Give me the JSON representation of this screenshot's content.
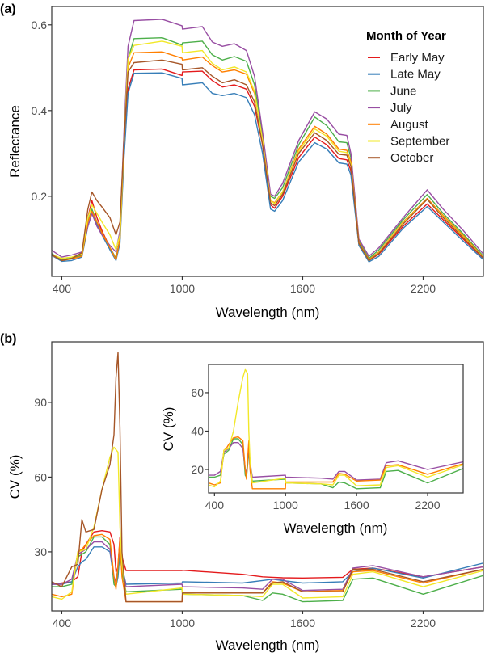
{
  "chart_data": [
    {
      "panel_label": "(a)",
      "type": "line",
      "xlabel": "Wavelength (nm)",
      "ylabel": "Reflectance",
      "xlim": [
        350,
        2500
      ],
      "ylim": [
        0.013,
        0.643
      ],
      "xticks": [
        400,
        1000,
        1600,
        2200
      ],
      "yticks": [
        0.2,
        0.4,
        0.6
      ],
      "ytick_labels": [
        "0.2",
        "0.4",
        "0.6"
      ],
      "grid": false,
      "legend": {
        "title": "Month of Year",
        "position": "top-right inside"
      },
      "x": [
        350,
        400,
        450,
        500,
        530,
        550,
        575,
        600,
        640,
        670,
        690,
        710,
        730,
        760,
        900,
        999,
        1001,
        1100,
        1150,
        1200,
        1260,
        1320,
        1360,
        1400,
        1440,
        1460,
        1500,
        1580,
        1660,
        1720,
        1780,
        1820,
        1840,
        1880,
        1930,
        1980,
        2100,
        2220,
        2300,
        2400,
        2500
      ],
      "series": [
        {
          "name": "Early May",
          "color": "#e41a1c",
          "values": [
            0.065,
            0.052,
            0.055,
            0.062,
            0.15,
            0.19,
            0.15,
            0.12,
            0.08,
            0.055,
            0.1,
            0.3,
            0.45,
            0.495,
            0.497,
            0.482,
            0.49,
            0.492,
            0.47,
            0.455,
            0.46,
            0.45,
            0.41,
            0.32,
            0.18,
            0.172,
            0.2,
            0.29,
            0.338,
            0.32,
            0.288,
            0.285,
            0.26,
            0.09,
            0.05,
            0.065,
            0.13,
            0.182,
            0.145,
            0.1,
            0.055
          ]
        },
        {
          "name": "Late May",
          "color": "#377eb8",
          "values": [
            0.062,
            0.048,
            0.05,
            0.058,
            0.13,
            0.16,
            0.135,
            0.11,
            0.075,
            0.05,
            0.09,
            0.29,
            0.44,
            0.487,
            0.488,
            0.475,
            0.46,
            0.465,
            0.44,
            0.435,
            0.44,
            0.43,
            0.39,
            0.3,
            0.17,
            0.165,
            0.19,
            0.28,
            0.325,
            0.31,
            0.278,
            0.275,
            0.25,
            0.085,
            0.047,
            0.06,
            0.125,
            0.176,
            0.14,
            0.095,
            0.052
          ]
        },
        {
          "name": "June",
          "color": "#4daf4a",
          "values": [
            0.066,
            0.052,
            0.056,
            0.063,
            0.14,
            0.17,
            0.14,
            0.115,
            0.08,
            0.055,
            0.1,
            0.33,
            0.52,
            0.568,
            0.57,
            0.553,
            0.558,
            0.562,
            0.53,
            0.518,
            0.526,
            0.515,
            0.46,
            0.34,
            0.2,
            0.195,
            0.22,
            0.32,
            0.385,
            0.365,
            0.327,
            0.325,
            0.29,
            0.095,
            0.055,
            0.075,
            0.145,
            0.204,
            0.16,
            0.112,
            0.06
          ]
        },
        {
          "name": "July",
          "color": "#984ea3",
          "values": [
            0.074,
            0.058,
            0.063,
            0.07,
            0.13,
            0.16,
            0.13,
            0.11,
            0.085,
            0.07,
            0.12,
            0.35,
            0.55,
            0.61,
            0.613,
            0.598,
            0.59,
            0.596,
            0.56,
            0.55,
            0.556,
            0.54,
            0.48,
            0.35,
            0.205,
            0.2,
            0.23,
            0.33,
            0.397,
            0.38,
            0.345,
            0.342,
            0.3,
            0.1,
            0.06,
            0.08,
            0.15,
            0.215,
            0.17,
            0.12,
            0.065
          ]
        },
        {
          "name": "August",
          "color": "#ff7f00",
          "values": [
            0.063,
            0.05,
            0.054,
            0.06,
            0.14,
            0.165,
            0.14,
            0.115,
            0.08,
            0.052,
            0.1,
            0.32,
            0.5,
            0.535,
            0.537,
            0.522,
            0.518,
            0.525,
            0.505,
            0.49,
            0.495,
            0.485,
            0.44,
            0.33,
            0.19,
            0.185,
            0.21,
            0.31,
            0.363,
            0.345,
            0.31,
            0.307,
            0.28,
            0.092,
            0.052,
            0.07,
            0.14,
            0.195,
            0.155,
            0.108,
            0.058
          ]
        },
        {
          "name": "September",
          "color": "#f2e829",
          "values": [
            0.064,
            0.055,
            0.058,
            0.065,
            0.15,
            0.18,
            0.16,
            0.14,
            0.11,
            0.075,
            0.11,
            0.33,
            0.52,
            0.552,
            0.562,
            0.55,
            0.535,
            0.54,
            0.51,
            0.495,
            0.502,
            0.49,
            0.445,
            0.33,
            0.19,
            0.183,
            0.21,
            0.305,
            0.357,
            0.34,
            0.305,
            0.302,
            0.275,
            0.09,
            0.05,
            0.068,
            0.138,
            0.193,
            0.152,
            0.105,
            0.057
          ]
        },
        {
          "name": "October",
          "color": "#a65628",
          "values": [
            0.064,
            0.05,
            0.055,
            0.068,
            0.17,
            0.21,
            0.19,
            0.175,
            0.15,
            0.11,
            0.14,
            0.33,
            0.49,
            0.512,
            0.518,
            0.508,
            0.495,
            0.5,
            0.48,
            0.465,
            0.472,
            0.46,
            0.42,
            0.32,
            0.185,
            0.178,
            0.205,
            0.3,
            0.348,
            0.33,
            0.298,
            0.296,
            0.27,
            0.09,
            0.05,
            0.067,
            0.135,
            0.193,
            0.15,
            0.103,
            0.056
          ]
        }
      ]
    },
    {
      "panel_label": "(b)",
      "type": "line",
      "xlabel": "Wavelength (nm)",
      "ylabel": "CV (%)",
      "xlim": [
        350,
        2500
      ],
      "ylim": [
        6.3,
        114.3
      ],
      "xticks": [
        400,
        1000,
        1600,
        2200
      ],
      "yticks": [
        30,
        60,
        90
      ],
      "grid": false,
      "x": [
        350,
        400,
        450,
        480,
        500,
        520,
        560,
        600,
        640,
        660,
        670,
        680,
        690,
        700,
        720,
        999,
        1001,
        1300,
        1400,
        1450,
        1500,
        1600,
        1800,
        1850,
        1950,
        2200,
        2500
      ],
      "series": [
        {
          "name": "Early May",
          "color": "#e41a1c",
          "values": [
            17,
            17.5,
            18,
            20,
            30,
            33,
            38,
            38.5,
            38,
            33,
            22,
            24,
            36,
            28,
            22.5,
            22.5,
            22.6,
            21,
            20,
            19.8,
            19.6,
            19.5,
            19.8,
            23,
            23.5,
            20,
            24
          ]
        },
        {
          "name": "Late May",
          "color": "#377eb8",
          "values": [
            17,
            17,
            18,
            24,
            26,
            27,
            32,
            32,
            30,
            19,
            16,
            20,
            30,
            24,
            17,
            17.5,
            18,
            17.5,
            18.5,
            19,
            18.5,
            17.5,
            18,
            22,
            23.5,
            19.5,
            25.5
          ]
        },
        {
          "name": "June",
          "color": "#4daf4a",
          "values": [
            16,
            16,
            17,
            28,
            29,
            30,
            36,
            36,
            33,
            17,
            16,
            22,
            30,
            22,
            14,
            15,
            13,
            12.5,
            10.5,
            13.5,
            13,
            10,
            10.5,
            19,
            19.5,
            13,
            20.5
          ]
        },
        {
          "name": "July",
          "color": "#984ea3",
          "values": [
            17,
            17,
            19,
            29,
            30,
            31,
            34,
            34,
            31,
            20,
            18,
            24,
            32,
            24,
            16,
            17,
            16,
            15.5,
            15,
            19,
            19,
            14.5,
            15,
            23.5,
            24.5,
            20,
            24
          ]
        },
        {
          "name": "August",
          "color": "#ff7f00",
          "values": [
            13,
            12,
            13,
            30,
            31,
            33,
            36.5,
            37,
            35,
            20,
            15,
            25,
            35,
            20,
            10,
            10,
            13.5,
            13.5,
            13.5,
            18,
            17.5,
            14,
            14.5,
            22,
            22.5,
            17.5,
            23
          ]
        },
        {
          "name": "September",
          "color": "#f2e829",
          "values": [
            12,
            11,
            14,
            30,
            30.5,
            31,
            40,
            55,
            68,
            72,
            71,
            70,
            40,
            25,
            13,
            15.5,
            13,
            12.5,
            12,
            17,
            17,
            11.5,
            12,
            21,
            22,
            16,
            22.5
          ]
        },
        {
          "name": "October",
          "color": "#a65628",
          "values": [
            18,
            16,
            24,
            25,
            43,
            38,
            39,
            55,
            65,
            77,
            100,
            110,
            80,
            30,
            10,
            10,
            13.5,
            13.5,
            13.5,
            17.5,
            18,
            14,
            14,
            23,
            23,
            18,
            23
          ]
        }
      ],
      "inset": {
        "xlabel": "Wavelength (nm)",
        "ylabel": "CV (%)",
        "xlim": [
          350,
          2500
        ],
        "ylim": [
          7.8,
          74.7
        ],
        "xticks": [
          400,
          1000,
          1600,
          2200
        ],
        "yticks": [
          20,
          40,
          60
        ],
        "series_shown": [
          "June",
          "July",
          "August",
          "September"
        ]
      }
    }
  ]
}
